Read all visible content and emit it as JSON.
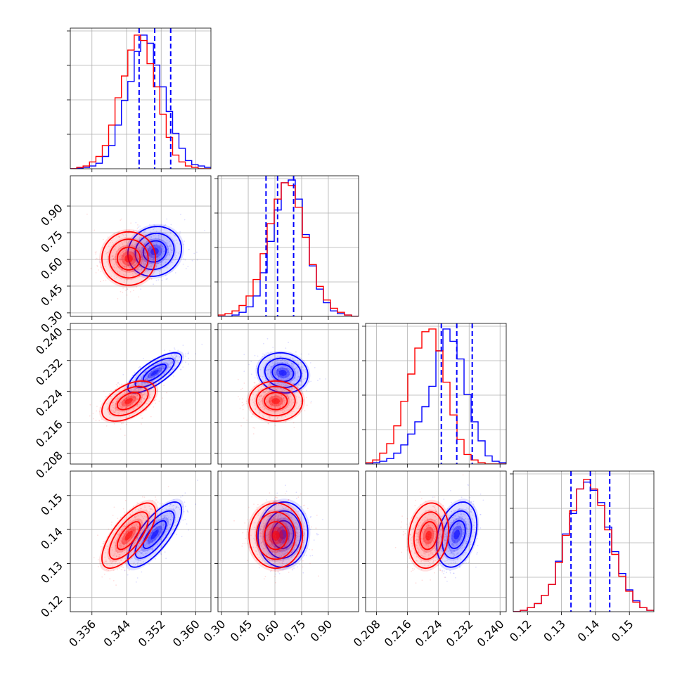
{
  "chart_data": {
    "type": "scatter",
    "subtype": "corner-plot",
    "title": "",
    "grid": true,
    "parameters": [
      {
        "range": [
          0.331,
          0.3635
        ],
        "ticks": [
          "0.336",
          "0.344",
          "0.352",
          "0.360"
        ]
      },
      {
        "range": [
          0.28,
          1.07
        ],
        "ticks": [
          "0.30",
          "0.45",
          "0.60",
          "0.75",
          "0.90"
        ]
      },
      {
        "range": [
          0.2052,
          0.2416
        ],
        "ticks": [
          "0.208",
          "0.216",
          "0.224",
          "0.232",
          "0.240"
        ]
      },
      {
        "range": [
          0.1158,
          0.1572
        ],
        "ticks": [
          "0.12",
          "0.13",
          "0.14",
          "0.15"
        ]
      }
    ],
    "colors": {
      "series_a": "#0000ff",
      "series_b": "#ff0000",
      "quantile_lines": "#0000ff",
      "grid": "#b0b0b0"
    },
    "series": [
      {
        "color": "#0000ff",
        "mean": [
          0.3505,
          0.645,
          0.2288,
          0.1385
        ],
        "std": [
          0.0031,
          0.07,
          0.0026,
          0.0048
        ],
        "corr": [
          [
            0,
            1,
            0.1
          ],
          [
            0,
            2,
            0.75
          ],
          [
            0,
            3,
            0.75
          ],
          [
            1,
            2,
            -0.1
          ],
          [
            1,
            3,
            0.05
          ],
          [
            2,
            3,
            0.3
          ]
        ],
        "histograms": [
          [
            0.0,
            0.005,
            0.01,
            0.02,
            0.04,
            0.09,
            0.17,
            0.32,
            0.5,
            0.64,
            0.86,
            0.98,
            0.92,
            0.76,
            0.6,
            0.42,
            0.26,
            0.15,
            0.06,
            0.03,
            0.02,
            0.01
          ],
          [
            0.0,
            0.0,
            0.01,
            0.03,
            0.07,
            0.15,
            0.32,
            0.55,
            0.78,
            0.98,
            1.0,
            0.86,
            0.6,
            0.37,
            0.2,
            0.1,
            0.04,
            0.02,
            0.01,
            0.0
          ],
          [
            0.0,
            0.01,
            0.02,
            0.04,
            0.08,
            0.14,
            0.22,
            0.31,
            0.42,
            0.57,
            0.83,
            0.99,
            0.9,
            0.77,
            0.51,
            0.31,
            0.17,
            0.06,
            0.02,
            0.01
          ],
          [
            0.0,
            0.01,
            0.03,
            0.06,
            0.12,
            0.2,
            0.37,
            0.57,
            0.72,
            0.9,
            0.95,
            0.89,
            0.8,
            0.62,
            0.44,
            0.28,
            0.16,
            0.08,
            0.03,
            0.01
          ]
        ],
        "quantiles": [
          [
            0.3469,
            0.3505,
            0.3542
          ],
          [
            0.55,
            0.615,
            0.705
          ],
          [
            0.2248,
            0.2288,
            0.2328
          ],
          [
            0.1328,
            0.1385,
            0.1442
          ]
        ]
      },
      {
        "color": "#ff0000",
        "mean": [
          0.3445,
          0.605,
          0.2215,
          0.1382
        ],
        "std": [
          0.0031,
          0.075,
          0.0026,
          0.0048
        ],
        "corr": [
          [
            0,
            1,
            0.0
          ],
          [
            0,
            2,
            0.5
          ],
          [
            0,
            3,
            0.7
          ],
          [
            1,
            2,
            0.0
          ],
          [
            1,
            3,
            0.0
          ],
          [
            2,
            3,
            0.15
          ]
        ],
        "histograms": [
          [
            0.0,
            0.01,
            0.02,
            0.05,
            0.09,
            0.17,
            0.32,
            0.52,
            0.68,
            0.87,
            0.98,
            0.94,
            0.77,
            0.6,
            0.4,
            0.23,
            0.1,
            0.05,
            0.02,
            0.01,
            0.0,
            0.0
          ],
          [
            0.01,
            0.02,
            0.04,
            0.08,
            0.15,
            0.27,
            0.46,
            0.68,
            0.86,
            0.98,
            0.96,
            0.8,
            0.58,
            0.38,
            0.22,
            0.12,
            0.06,
            0.03,
            0.01,
            0.0
          ],
          [
            0.01,
            0.03,
            0.08,
            0.15,
            0.28,
            0.46,
            0.66,
            0.85,
            0.97,
            0.99,
            0.83,
            0.6,
            0.36,
            0.18,
            0.07,
            0.03,
            0.01,
            0.0,
            0.0,
            0.0
          ],
          [
            0.0,
            0.01,
            0.03,
            0.06,
            0.12,
            0.2,
            0.36,
            0.56,
            0.74,
            0.9,
            0.97,
            0.9,
            0.78,
            0.6,
            0.42,
            0.26,
            0.15,
            0.07,
            0.03,
            0.01
          ]
        ]
      }
    ]
  }
}
